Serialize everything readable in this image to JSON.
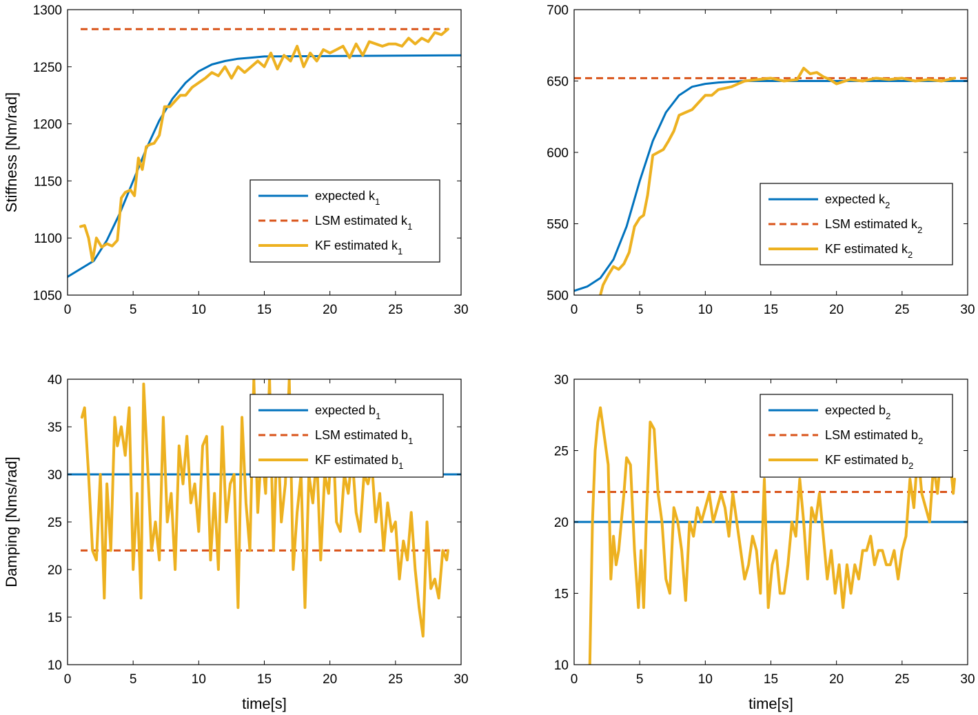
{
  "colors": {
    "expected": "#0072BD",
    "lsm": "#D95319",
    "kf": "#EDB120"
  },
  "chart_data": [
    {
      "id": "k1",
      "type": "line",
      "ylabel": "Stiffness [Nm/rad]",
      "xlabel": "",
      "xlim": [
        0,
        30
      ],
      "ylim": [
        1050,
        1300
      ],
      "xticks": [
        0,
        5,
        10,
        15,
        20,
        25,
        30
      ],
      "yticks": [
        1050,
        1100,
        1150,
        1200,
        1250,
        1300
      ],
      "legend": {
        "position": "middle-right",
        "entries": [
          {
            "text": "expected k",
            "sub": "1"
          },
          {
            "text": "LSM estimated k",
            "sub": "1"
          },
          {
            "text": "KF estimated k",
            "sub": "1"
          }
        ]
      },
      "series": [
        {
          "name": "expected k1",
          "style": "solid",
          "x": [
            0,
            2,
            3,
            4,
            5,
            6,
            7,
            8,
            9,
            10,
            11,
            12,
            13,
            14,
            15,
            30
          ],
          "y": [
            1066,
            1080,
            1098,
            1122,
            1150,
            1178,
            1203,
            1222,
            1236,
            1246,
            1252,
            1255,
            1257,
            1258,
            1259,
            1260
          ]
        },
        {
          "name": "LSM estimated k1",
          "style": "dashed",
          "x": [
            1,
            29
          ],
          "y": [
            1283,
            1283
          ]
        },
        {
          "name": "KF estimated k1",
          "style": "solid",
          "x": [
            1,
            1.3,
            1.6,
            1.9,
            2.2,
            2.6,
            3,
            3.4,
            3.8,
            4.1,
            4.4,
            4.8,
            5.1,
            5.4,
            5.7,
            6,
            6.3,
            6.6,
            7,
            7.4,
            7.8,
            8.2,
            8.6,
            9,
            9.5,
            10,
            10.5,
            11,
            11.5,
            12,
            12.5,
            13,
            13.5,
            14,
            14.5,
            15,
            15.5,
            16,
            16.5,
            17,
            17.5,
            18,
            18.5,
            19,
            19.5,
            20,
            20.5,
            21,
            21.5,
            22,
            22.5,
            23,
            23.5,
            24,
            24.5,
            25,
            25.5,
            26,
            26.5,
            27,
            27.5,
            28,
            28.5,
            29
          ],
          "y": [
            1110,
            1111,
            1100,
            1080,
            1100,
            1092,
            1095,
            1093,
            1098,
            1135,
            1140,
            1142,
            1137,
            1170,
            1160,
            1180,
            1182,
            1183,
            1190,
            1215,
            1215,
            1220,
            1225,
            1225,
            1232,
            1236,
            1240,
            1245,
            1242,
            1250,
            1240,
            1250,
            1245,
            1250,
            1255,
            1250,
            1262,
            1248,
            1260,
            1255,
            1268,
            1250,
            1262,
            1255,
            1265,
            1262,
            1265,
            1268,
            1258,
            1270,
            1260,
            1272,
            1270,
            1268,
            1270,
            1270,
            1268,
            1275,
            1270,
            1275,
            1272,
            1280,
            1278,
            1283
          ]
        }
      ]
    },
    {
      "id": "k2",
      "type": "line",
      "ylabel": "",
      "xlabel": "",
      "xlim": [
        0,
        30
      ],
      "ylim": [
        500,
        700
      ],
      "xticks": [
        0,
        5,
        10,
        15,
        20,
        25,
        30
      ],
      "yticks": [
        500,
        550,
        600,
        650,
        700
      ],
      "legend": {
        "position": "middle-right",
        "entries": [
          {
            "text": "expected k",
            "sub": "2"
          },
          {
            "text": "LSM estimated k",
            "sub": "2"
          },
          {
            "text": "KF estimated k",
            "sub": "2"
          }
        ]
      },
      "series": [
        {
          "name": "expected k2",
          "style": "solid",
          "x": [
            0,
            1,
            2,
            3,
            4,
            5,
            6,
            7,
            8,
            9,
            10,
            11,
            12,
            13,
            30
          ],
          "y": [
            503,
            506,
            512,
            525,
            548,
            580,
            608,
            628,
            640,
            646,
            648,
            649,
            649.5,
            650,
            650
          ]
        },
        {
          "name": "LSM estimated k2",
          "style": "dashed",
          "x": [
            0,
            30
          ],
          "y": [
            652,
            652
          ]
        },
        {
          "name": "KF estimated k2",
          "style": "solid",
          "x": [
            2,
            2.2,
            2.6,
            3,
            3.4,
            3.8,
            4.2,
            4.6,
            5,
            5.3,
            5.6,
            6,
            6.4,
            6.8,
            7.2,
            7.6,
            8,
            8.5,
            9,
            9.5,
            10,
            10.5,
            11,
            11.5,
            12,
            12.5,
            13,
            14,
            15,
            16,
            17,
            17.5,
            18,
            18.5,
            19,
            19.5,
            20,
            21,
            22,
            23,
            24,
            25,
            26,
            27,
            28,
            29
          ],
          "y": [
            500,
            507,
            514,
            520,
            518,
            522,
            530,
            548,
            554,
            556,
            570,
            598,
            600,
            602,
            608,
            615,
            626,
            628,
            630,
            635,
            640,
            640,
            644,
            645,
            646,
            648,
            650,
            651,
            652,
            650,
            651,
            659,
            655,
            656,
            653,
            651,
            648,
            651,
            650,
            652,
            651,
            652,
            650,
            651,
            650,
            652
          ]
        }
      ]
    },
    {
      "id": "b1",
      "type": "line",
      "ylabel": "Damping [Nms/rad]",
      "xlabel": "time[s]",
      "xlim": [
        0,
        30
      ],
      "ylim": [
        10,
        40
      ],
      "xticks": [
        0,
        5,
        10,
        15,
        20,
        25,
        30
      ],
      "yticks": [
        10,
        15,
        20,
        25,
        30,
        35,
        40
      ],
      "legend": {
        "position": "top-right",
        "entries": [
          {
            "text": "expected b",
            "sub": "1"
          },
          {
            "text": "LSM estimated b",
            "sub": "1"
          },
          {
            "text": "KF estimated b",
            "sub": "1"
          }
        ]
      },
      "series": [
        {
          "name": "expected b1",
          "style": "solid",
          "x": [
            0,
            30
          ],
          "y": [
            30,
            30
          ]
        },
        {
          "name": "LSM estimated b1",
          "style": "dashed",
          "x": [
            1,
            29
          ],
          "y": [
            22,
            22
          ]
        },
        {
          "name": "KF estimated b1",
          "style": "solid",
          "x": [
            1.1,
            1.3,
            1.6,
            1.9,
            2.2,
            2.5,
            2.8,
            3.0,
            3.3,
            3.6,
            3.8,
            4.1,
            4.4,
            4.7,
            5.0,
            5.3,
            5.6,
            5.8,
            6.1,
            6.4,
            6.7,
            7.0,
            7.3,
            7.6,
            7.9,
            8.2,
            8.5,
            8.8,
            9.1,
            9.4,
            9.7,
            10.0,
            10.3,
            10.6,
            10.9,
            11.2,
            11.5,
            11.8,
            12.1,
            12.4,
            12.7,
            13.0,
            13.3,
            13.6,
            13.9,
            14.2,
            14.5,
            14.8,
            15.1,
            15.4,
            15.7,
            16.0,
            16.3,
            16.6,
            16.9,
            17.2,
            17.5,
            17.8,
            18.1,
            18.4,
            18.7,
            19.0,
            19.3,
            19.6,
            19.9,
            20.2,
            20.5,
            20.8,
            21.1,
            21.4,
            21.7,
            22.0,
            22.3,
            22.6,
            22.9,
            23.2,
            23.5,
            23.8,
            24.1,
            24.4,
            24.7,
            25.0,
            25.3,
            25.6,
            25.9,
            26.2,
            26.5,
            26.8,
            27.1,
            27.4,
            27.7,
            28.0,
            28.3,
            28.6,
            28.9,
            29.0
          ],
          "y": [
            36,
            37,
            30,
            22,
            21,
            30,
            17,
            29,
            22,
            36,
            33,
            35,
            32,
            37,
            20,
            28,
            17,
            39.5,
            31,
            22,
            25,
            21,
            36,
            25,
            28,
            20,
            33,
            29,
            34,
            27,
            29,
            24,
            33,
            34,
            21,
            28,
            20,
            35,
            25,
            29,
            30,
            16,
            36,
            27,
            22,
            40,
            26,
            33,
            28,
            40,
            22,
            35,
            25,
            29,
            40,
            20,
            26,
            30,
            16,
            30,
            27,
            32,
            21,
            30,
            28,
            35,
            25,
            24,
            30,
            28,
            32,
            26,
            24,
            30,
            29,
            31,
            25,
            28,
            22,
            27,
            24,
            25,
            19,
            23,
            21,
            26,
            20,
            16,
            13,
            25,
            18,
            19,
            17,
            22,
            21,
            22
          ]
        }
      ]
    },
    {
      "id": "b2",
      "type": "line",
      "ylabel": "",
      "xlabel": "time[s]",
      "xlim": [
        0,
        30
      ],
      "ylim": [
        10,
        30
      ],
      "xticks": [
        0,
        5,
        10,
        15,
        20,
        25,
        30
      ],
      "yticks": [
        10,
        15,
        20,
        25,
        30
      ],
      "legend": {
        "position": "top-right",
        "entries": [
          {
            "text": "expected b",
            "sub": "2"
          },
          {
            "text": "LSM estimated b",
            "sub": "2"
          },
          {
            "text": "KF estimated b",
            "sub": "2"
          }
        ]
      },
      "series": [
        {
          "name": "expected b2",
          "style": "solid",
          "x": [
            0,
            30
          ],
          "y": [
            20,
            20
          ]
        },
        {
          "name": "LSM estimated b2",
          "style": "dashed",
          "x": [
            1,
            29
          ],
          "y": [
            22.1,
            22.1
          ]
        },
        {
          "name": "KF estimated b2",
          "style": "solid",
          "x": [
            1.2,
            1.4,
            1.6,
            1.8,
            2.0,
            2.3,
            2.6,
            2.8,
            3.0,
            3.2,
            3.4,
            3.6,
            3.8,
            4.0,
            4.3,
            4.6,
            4.9,
            5.1,
            5.3,
            5.5,
            5.8,
            6.1,
            6.4,
            6.7,
            7.0,
            7.3,
            7.6,
            7.9,
            8.2,
            8.5,
            8.8,
            9.1,
            9.4,
            9.7,
            10.0,
            10.3,
            10.6,
            10.9,
            11.2,
            11.5,
            11.8,
            12.1,
            12.4,
            12.7,
            13.0,
            13.3,
            13.6,
            13.9,
            14.2,
            14.5,
            14.8,
            15.1,
            15.4,
            15.7,
            16.0,
            16.3,
            16.6,
            16.9,
            17.2,
            17.5,
            17.8,
            18.1,
            18.4,
            18.7,
            19.0,
            19.3,
            19.6,
            19.9,
            20.2,
            20.5,
            20.8,
            21.1,
            21.4,
            21.7,
            22.0,
            22.3,
            22.6,
            22.9,
            23.2,
            23.5,
            23.8,
            24.1,
            24.4,
            24.7,
            25.0,
            25.3,
            25.6,
            25.9,
            26.2,
            26.5,
            26.8,
            27.1,
            27.4,
            27.7,
            28.0,
            28.3,
            28.6,
            28.9,
            29.0
          ],
          "y": [
            10,
            20,
            25,
            27,
            28,
            26,
            24,
            16,
            19,
            17,
            18,
            20,
            22,
            24.5,
            24,
            18,
            14,
            18,
            14,
            20,
            27,
            26.5,
            22,
            20,
            16,
            15,
            21,
            20,
            18,
            14.5,
            20,
            19,
            21,
            20,
            21,
            22,
            20,
            21,
            22,
            21,
            19,
            22,
            20,
            18,
            16,
            17,
            19,
            18,
            15,
            23,
            14,
            17,
            18,
            15,
            15,
            17,
            20,
            19,
            23,
            20,
            16,
            21,
            20,
            22,
            19,
            16,
            18,
            15,
            17,
            14,
            17,
            15,
            17,
            16,
            18,
            18,
            19,
            17,
            18,
            18,
            17,
            17,
            18,
            16,
            18,
            19,
            23,
            21,
            25,
            22,
            21,
            20,
            24,
            22,
            25,
            27,
            25,
            22,
            23
          ]
        }
      ]
    }
  ]
}
